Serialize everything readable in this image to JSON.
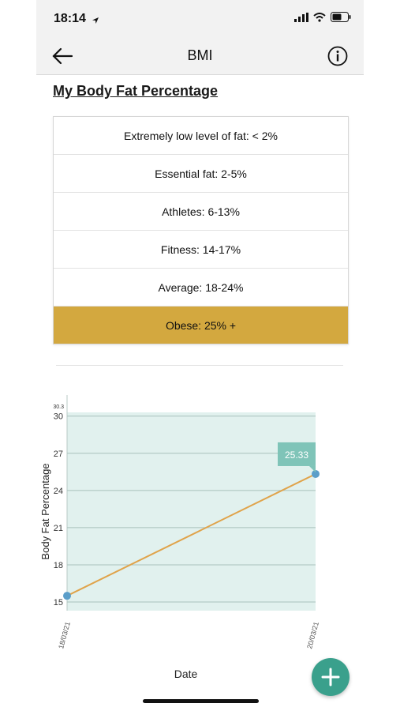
{
  "status": {
    "time": "18:14"
  },
  "nav": {
    "title": "BMI"
  },
  "section": {
    "title": "My Body Fat Percentage"
  },
  "ranges": [
    {
      "label": "Extremely low level of fat: < 2%",
      "active": false
    },
    {
      "label": "Essential fat: 2-5%",
      "active": false
    },
    {
      "label": "Athletes: 6-13%",
      "active": false
    },
    {
      "label": "Fitness: 14-17%",
      "active": false
    },
    {
      "label": "Average: 18-24%",
      "active": false
    },
    {
      "label": "Obese: 25% +",
      "active": true
    }
  ],
  "colors": {
    "active_range": "#d3a83f",
    "accent": "#3aa08c",
    "line": "#e0a34a",
    "point": "#5b9ec9",
    "plot_bg": "#e1f1ee"
  },
  "chart_data": {
    "type": "line",
    "title": "",
    "xlabel": "Date",
    "ylabel": "Body Fat Percentage",
    "x": [
      "18/03/21",
      "20/03/21"
    ],
    "series": [
      {
        "values": [
          15.5,
          25.33
        ]
      }
    ],
    "ylim": [
      14.3,
      30.3
    ],
    "yticks": [
      15,
      18,
      21,
      24,
      27,
      30
    ],
    "top_label": "30.3",
    "tooltip": "25.33",
    "grid": true
  },
  "icons": {
    "back": "arrow-left-icon",
    "info": "info-icon",
    "add": "plus-icon"
  }
}
